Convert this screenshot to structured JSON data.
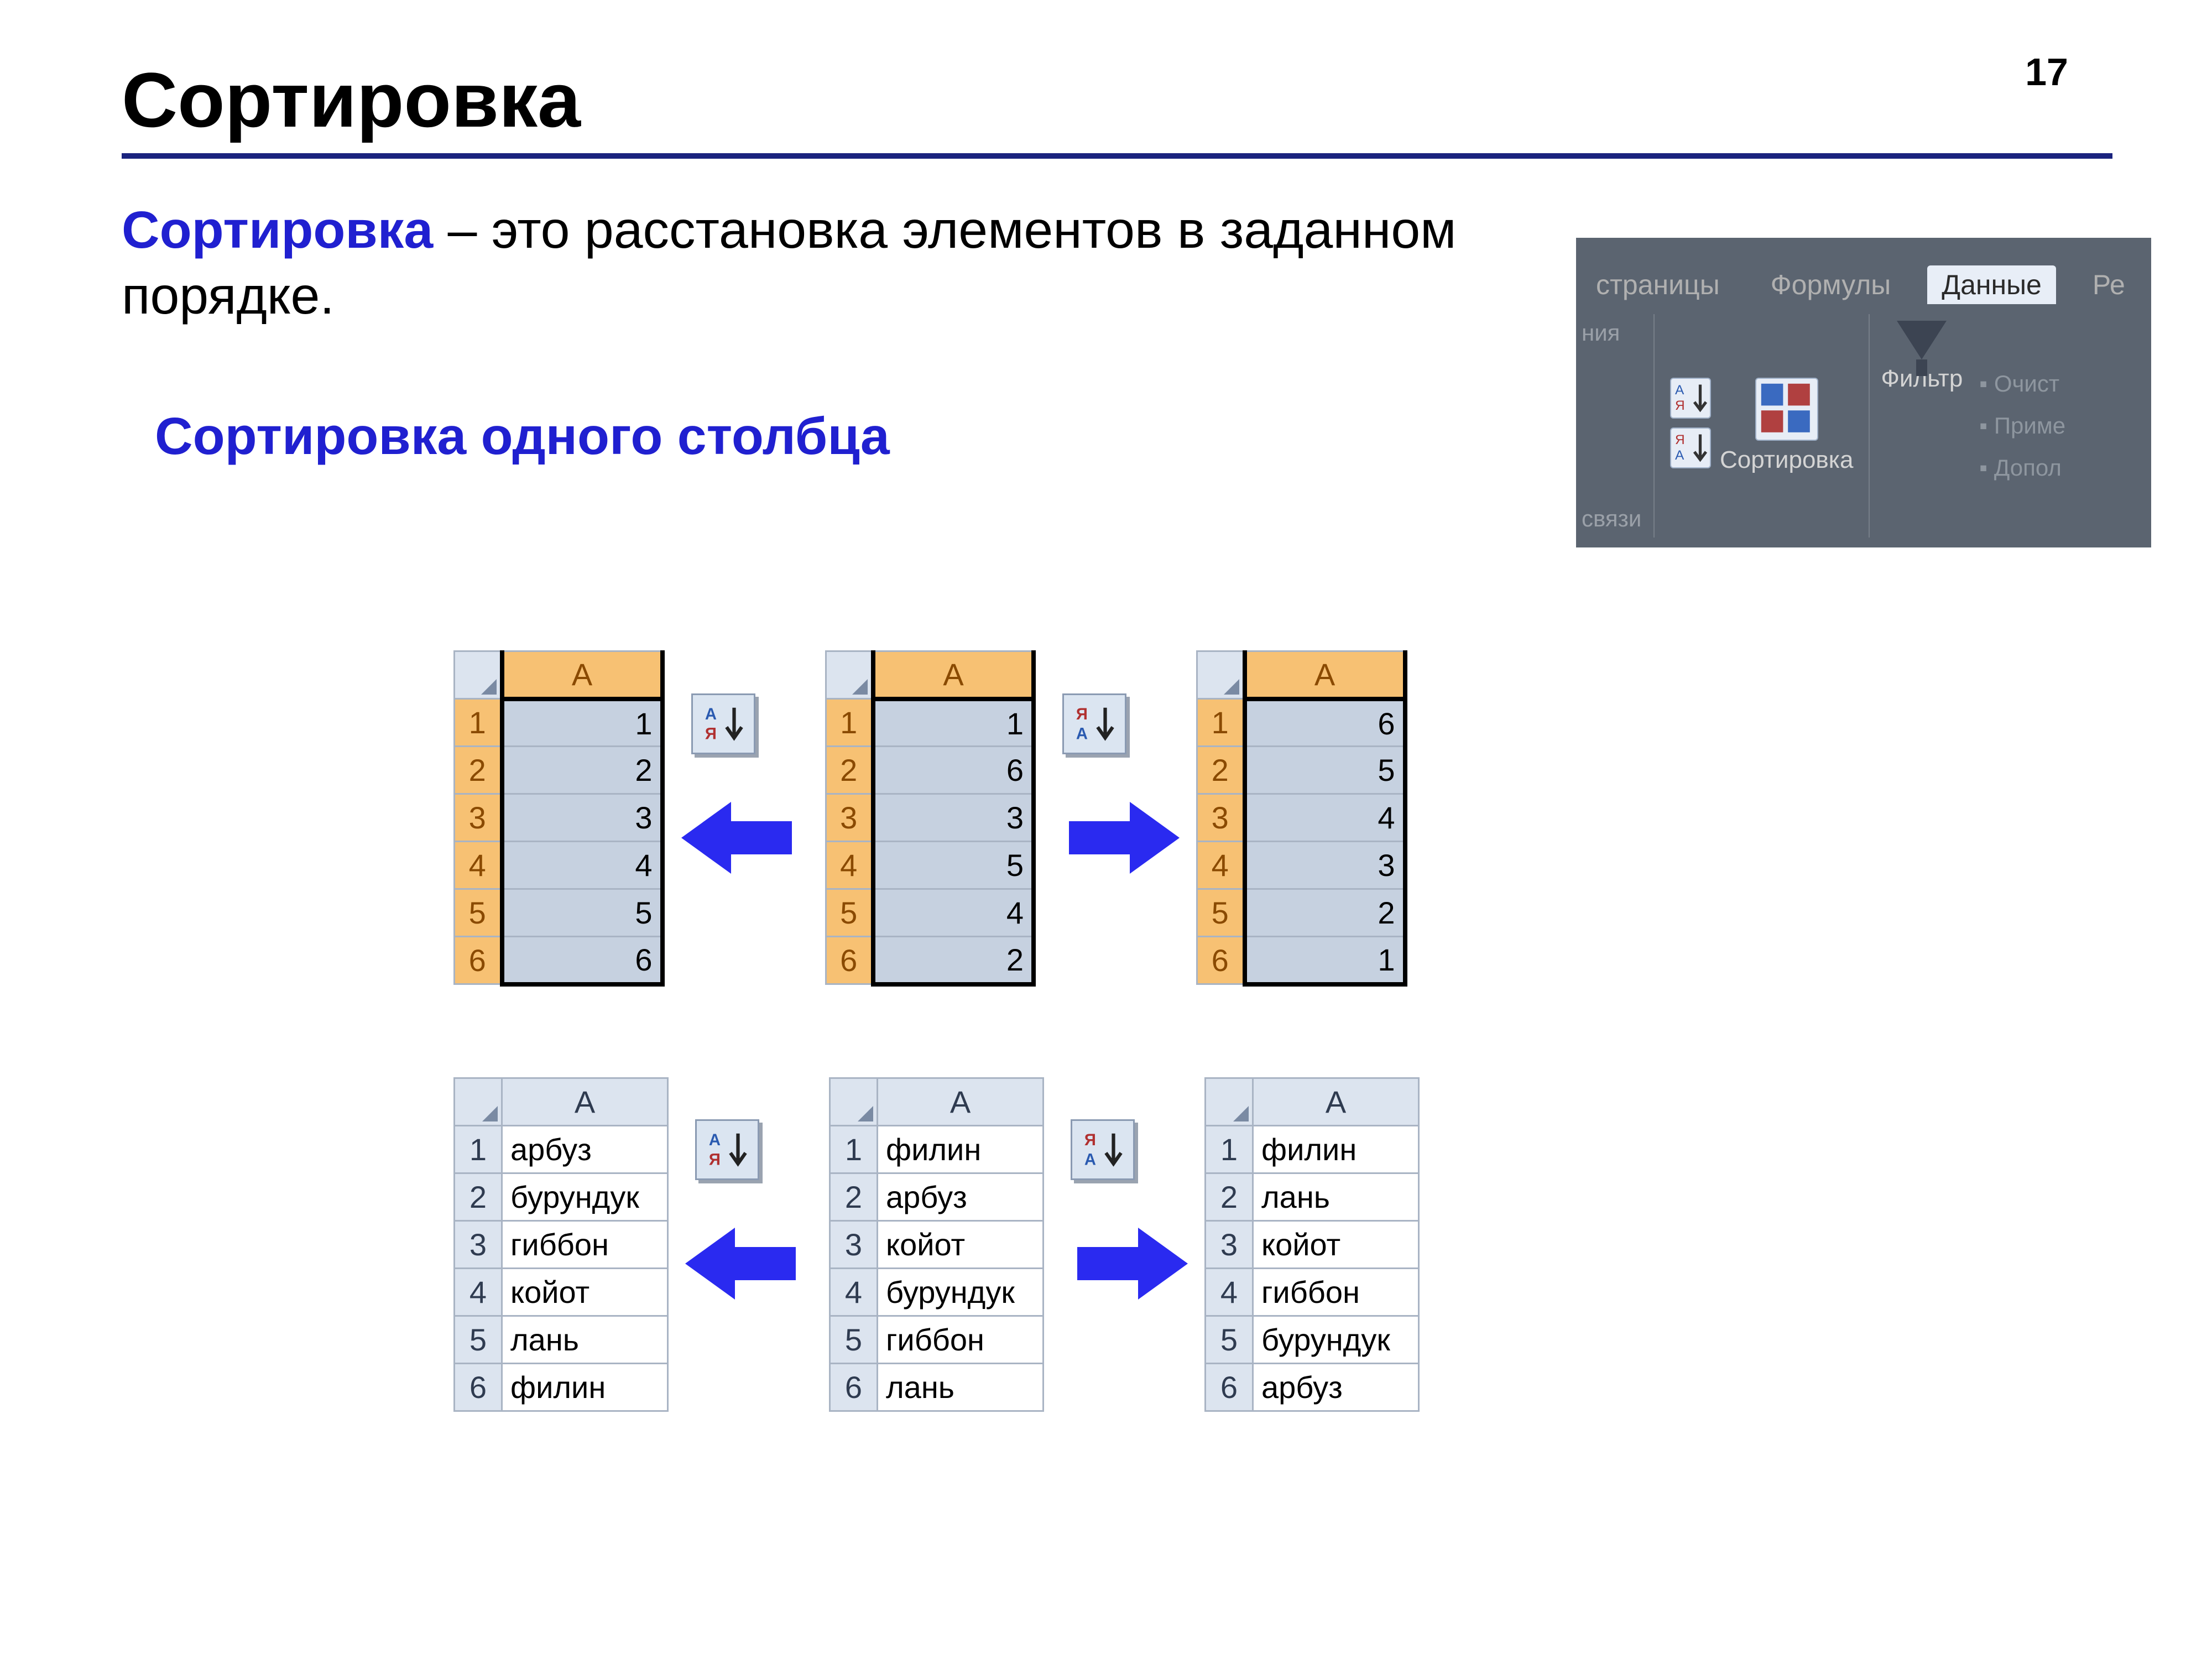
{
  "page_number": "17",
  "title": "Сортировка",
  "definition_term": "Сортировка",
  "definition_rest": " – это расстановка элементов в заданном порядке.",
  "subheading": "Сортировка одного столбца",
  "ribbon": {
    "tabs_left": "страницы",
    "tab_formulas": "Формулы",
    "tab_data": "Данные",
    "tab_rev": "Ре",
    "left_top": "ния",
    "left_bottom": "связи",
    "sort_label": "Сортировка",
    "filter_label": "Фильтр",
    "opt1": "Очист",
    "opt2": "Приме",
    "opt3": "Допол"
  },
  "colors": {
    "accent": "#2020d0",
    "title_rule": "#1a237e",
    "header_bg": "#dce4ef",
    "sel_header_bg": "#f7c173",
    "sel_cell_bg": "#c6d1e0",
    "arrow_fill": "#2a2af0",
    "ribbon_bg": "#5b6470"
  },
  "row_numbers": [
    "1",
    "2",
    "3",
    "4",
    "5",
    "6"
  ],
  "col_label": "A",
  "numset": {
    "asc": [
      "1",
      "2",
      "3",
      "4",
      "5",
      "6"
    ],
    "mid": [
      "1",
      "6",
      "3",
      "5",
      "4",
      "2"
    ],
    "desc": [
      "6",
      "5",
      "4",
      "3",
      "2",
      "1"
    ]
  },
  "wordset": {
    "asc": [
      "арбуз",
      "бурундук",
      "гиббон",
      "койот",
      "лань",
      "филин"
    ],
    "mid": [
      "филин",
      "арбуз",
      "койот",
      "бурундук",
      "гиббон",
      "лань"
    ],
    "desc": [
      "филин",
      "лань",
      "койот",
      "гиббон",
      "бурундук",
      "арбуз"
    ]
  },
  "col_widths": {
    "num": 290,
    "txt": 300
  }
}
